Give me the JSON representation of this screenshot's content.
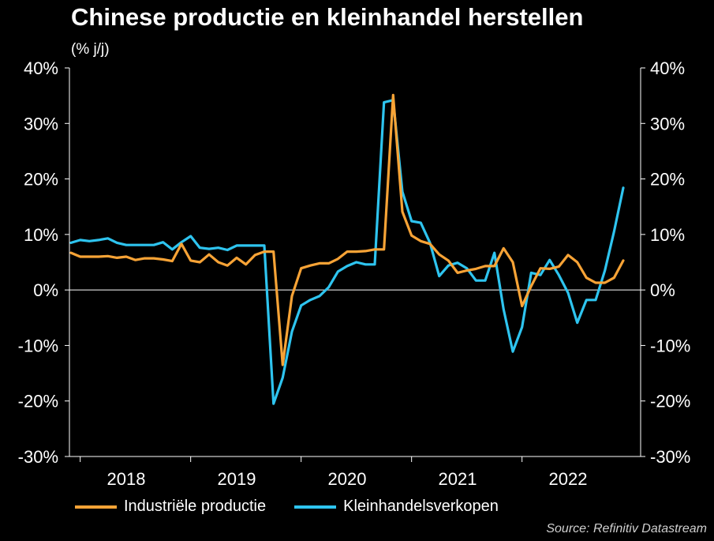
{
  "chart_data": {
    "type": "line",
    "title": "Chinese productie en kleinhandel herstellen",
    "subtitle": "(% j/j)",
    "source": "Source: Refinitiv Datastream",
    "ylim": [
      -30,
      40
    ],
    "yticks": [
      40,
      30,
      20,
      10,
      0,
      -10,
      -20,
      -30
    ],
    "ytick_labels": [
      "40%",
      "30%",
      "20%",
      "10%",
      "0%",
      "-10%",
      "-20%",
      "-30%"
    ],
    "x_start": "2017-12",
    "x_end": "2022-12",
    "xtick_labels": [
      {
        "label": "2018",
        "x": "2018-06"
      },
      {
        "label": "2019",
        "x": "2019-06"
      },
      {
        "label": "2020",
        "x": "2020-06"
      },
      {
        "label": "2021",
        "x": "2021-06"
      },
      {
        "label": "2022",
        "x": "2022-06"
      }
    ],
    "legend_position": "bottom",
    "zero_line": true,
    "series": [
      {
        "name": "Industriële productie",
        "color": "#f7a336",
        "points": [
          [
            "2017-12",
            6.7
          ],
          [
            "2018-01",
            6.0
          ],
          [
            "2018-02",
            6.0
          ],
          [
            "2018-03",
            6.0
          ],
          [
            "2018-04",
            6.1
          ],
          [
            "2018-05",
            5.8
          ],
          [
            "2018-06",
            6.0
          ],
          [
            "2018-07",
            5.4
          ],
          [
            "2018-08",
            5.7
          ],
          [
            "2018-09",
            5.7
          ],
          [
            "2018-10",
            5.5
          ],
          [
            "2018-11",
            5.2
          ],
          [
            "2018-12",
            8.3
          ],
          [
            "2019-01",
            5.3
          ],
          [
            "2019-02",
            5.0
          ],
          [
            "2019-03",
            6.4
          ],
          [
            "2019-04",
            5.0
          ],
          [
            "2019-05",
            4.4
          ],
          [
            "2019-06",
            5.8
          ],
          [
            "2019-07",
            4.6
          ],
          [
            "2019-08",
            6.3
          ],
          [
            "2019-09",
            6.9
          ],
          [
            "2019-10",
            6.9
          ],
          [
            "2019-11",
            -13.5
          ],
          [
            "2019-12",
            -1.1
          ],
          [
            "2020-01",
            3.9
          ],
          [
            "2020-02",
            4.4
          ],
          [
            "2020-03",
            4.8
          ],
          [
            "2020-04",
            4.8
          ],
          [
            "2020-05",
            5.6
          ],
          [
            "2020-06",
            6.9
          ],
          [
            "2020-07",
            6.9
          ],
          [
            "2020-08",
            7.0
          ],
          [
            "2020-09",
            7.3
          ],
          [
            "2020-10",
            7.3
          ],
          [
            "2020-11",
            35.1
          ],
          [
            "2020-12",
            14.1
          ],
          [
            "2021-01",
            9.8
          ],
          [
            "2021-02",
            8.8
          ],
          [
            "2021-03",
            8.3
          ],
          [
            "2021-04",
            6.4
          ],
          [
            "2021-05",
            5.3
          ],
          [
            "2021-06",
            3.1
          ],
          [
            "2021-07",
            3.5
          ],
          [
            "2021-08",
            3.8
          ],
          [
            "2021-09",
            4.3
          ],
          [
            "2021-10",
            4.3
          ],
          [
            "2021-11",
            7.5
          ],
          [
            "2021-12",
            5.0
          ],
          [
            "2022-01",
            -2.9
          ],
          [
            "2022-02",
            0.7
          ],
          [
            "2022-03",
            3.9
          ],
          [
            "2022-04",
            3.8
          ],
          [
            "2022-05",
            4.2
          ],
          [
            "2022-06",
            6.3
          ],
          [
            "2022-07",
            5.0
          ],
          [
            "2022-08",
            2.2
          ],
          [
            "2022-09",
            1.3
          ],
          [
            "2022-10",
            1.3
          ],
          [
            "2022-11",
            2.2
          ],
          [
            "2022-12",
            5.3
          ]
        ]
      },
      {
        "name": "Kleinhandelsverkopen",
        "color": "#2ec4ef",
        "points": [
          [
            "2017-12",
            8.5
          ],
          [
            "2018-01",
            9.0
          ],
          [
            "2018-02",
            8.8
          ],
          [
            "2018-03",
            9.0
          ],
          [
            "2018-04",
            9.3
          ],
          [
            "2018-05",
            8.5
          ],
          [
            "2018-06",
            8.1
          ],
          [
            "2018-07",
            8.1
          ],
          [
            "2018-08",
            8.1
          ],
          [
            "2018-09",
            8.1
          ],
          [
            "2018-10",
            8.6
          ],
          [
            "2018-11",
            7.3
          ],
          [
            "2018-12",
            8.6
          ],
          [
            "2019-01",
            9.7
          ],
          [
            "2019-02",
            7.6
          ],
          [
            "2019-03",
            7.4
          ],
          [
            "2019-04",
            7.6
          ],
          [
            "2019-05",
            7.2
          ],
          [
            "2019-06",
            8.0
          ],
          [
            "2019-07",
            8.0
          ],
          [
            "2019-08",
            8.0
          ],
          [
            "2019-09",
            8.0
          ],
          [
            "2019-10",
            -20.5
          ],
          [
            "2019-11",
            -15.8
          ],
          [
            "2019-12",
            -7.5
          ],
          [
            "2020-01",
            -2.8
          ],
          [
            "2020-02",
            -1.8
          ],
          [
            "2020-03",
            -1.1
          ],
          [
            "2020-04",
            0.5
          ],
          [
            "2020-05",
            3.3
          ],
          [
            "2020-06",
            4.3
          ],
          [
            "2020-07",
            5.0
          ],
          [
            "2020-08",
            4.6
          ],
          [
            "2020-09",
            4.6
          ],
          [
            "2020-10",
            33.8
          ],
          [
            "2020-11",
            34.2
          ],
          [
            "2020-12",
            17.7
          ],
          [
            "2021-01",
            12.4
          ],
          [
            "2021-02",
            12.1
          ],
          [
            "2021-03",
            8.5
          ],
          [
            "2021-04",
            2.5
          ],
          [
            "2021-05",
            4.4
          ],
          [
            "2021-06",
            4.9
          ],
          [
            "2021-07",
            3.9
          ],
          [
            "2021-08",
            1.7
          ],
          [
            "2021-09",
            1.7
          ],
          [
            "2021-10",
            6.7
          ],
          [
            "2021-11",
            -3.5
          ],
          [
            "2021-12",
            -11.1
          ],
          [
            "2022-01",
            -6.7
          ],
          [
            "2022-02",
            3.1
          ],
          [
            "2022-03",
            2.7
          ],
          [
            "2022-04",
            5.4
          ],
          [
            "2022-05",
            2.7
          ],
          [
            "2022-06",
            -0.5
          ],
          [
            "2022-07",
            -5.9
          ],
          [
            "2022-08",
            -1.8
          ],
          [
            "2022-09",
            -1.8
          ],
          [
            "2022-10",
            3.5
          ],
          [
            "2022-11",
            10.5
          ],
          [
            "2022-12",
            18.4
          ]
        ]
      }
    ]
  }
}
